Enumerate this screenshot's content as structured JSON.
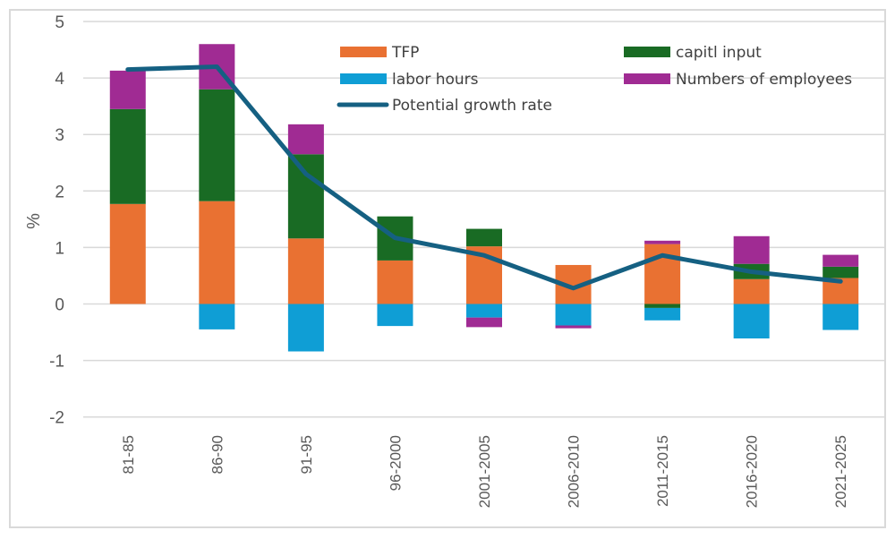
{
  "chart_data": {
    "type": "bar",
    "stacked": true,
    "title": "",
    "xlabel": "",
    "ylabel": "%",
    "ylim": [
      -2,
      5
    ],
    "yticks": [
      5,
      4,
      3,
      2,
      1,
      0,
      -1,
      -2
    ],
    "grid": true,
    "categories": [
      "81-85",
      "86-90",
      "91-95",
      "96-2000",
      "2001-2005",
      "2006-2010",
      "2011-2015",
      "2016-2020",
      "2021-2025"
    ],
    "series": [
      {
        "name": "TFP",
        "type": "bar",
        "color": "#E97132",
        "values": [
          1.77,
          1.82,
          1.16,
          0.77,
          1.02,
          0.69,
          1.06,
          0.44,
          0.46
        ]
      },
      {
        "name": "capitl input",
        "type": "bar",
        "color": "#196B24",
        "values": [
          1.68,
          1.98,
          1.49,
          0.78,
          0.31,
          0.0,
          -0.07,
          0.27,
          0.2
        ]
      },
      {
        "name": "labor hours",
        "type": "bar",
        "color": "#0F9ED5",
        "values": [
          0.0,
          -0.45,
          -0.84,
          -0.39,
          -0.24,
          -0.38,
          -0.22,
          -0.61,
          -0.46
        ]
      },
      {
        "name": "Numbers of employees",
        "type": "bar",
        "color": "#A02B93",
        "values": [
          0.68,
          0.8,
          0.53,
          0.0,
          -0.17,
          -0.05,
          0.06,
          0.49,
          0.21
        ]
      },
      {
        "name": "Potential growth rate",
        "type": "line",
        "color": "#156082",
        "values": [
          4.15,
          4.2,
          2.3,
          1.17,
          0.86,
          0.28,
          0.86,
          0.57,
          0.4
        ]
      }
    ],
    "legend": {
      "placement": "top-right",
      "items": [
        {
          "label": "TFP",
          "marker": "box",
          "color": "#E97132"
        },
        {
          "label": "capitl input",
          "marker": "box",
          "color": "#196B24"
        },
        {
          "label": "labor hours",
          "marker": "box",
          "color": "#0F9ED5"
        },
        {
          "label": "Numbers of employees",
          "marker": "box",
          "color": "#A02B93"
        },
        {
          "label": "Potential growth rate",
          "marker": "line",
          "color": "#156082"
        }
      ]
    }
  }
}
